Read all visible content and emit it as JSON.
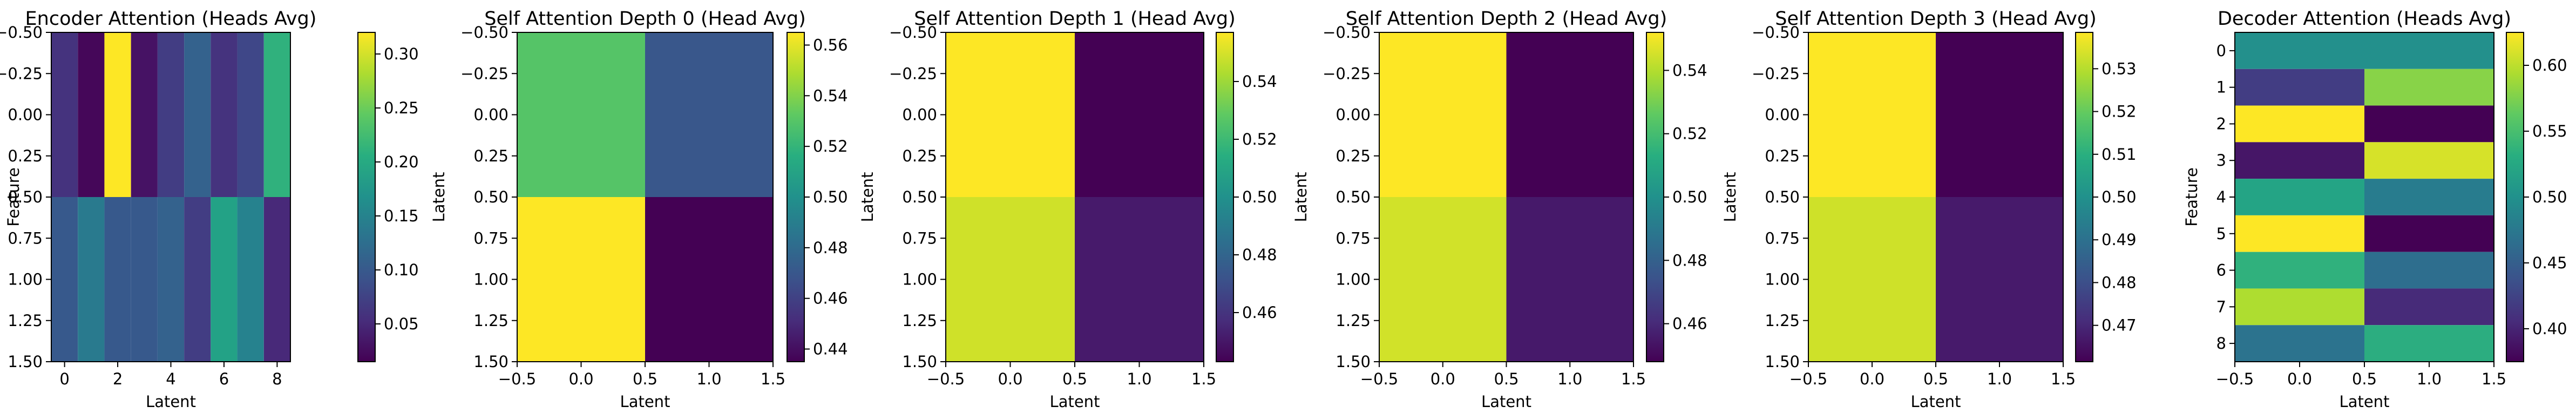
{
  "chart_data": [
    {
      "type": "heatmap",
      "title": "Encoder Attention (Heads Avg)",
      "xlabel": "Latent",
      "ylabel": "Feature",
      "xlim": [
        -0.5,
        8.5
      ],
      "ylim": [
        1.5,
        -0.5
      ],
      "x_ticks": [
        0,
        2,
        4,
        6,
        8
      ],
      "x_tick_labels": [
        "0",
        "2",
        "4",
        "6",
        "8"
      ],
      "y_ticks": [
        -0.5,
        -0.25,
        0.0,
        0.25,
        0.5,
        0.75,
        1.0,
        1.25,
        1.5
      ],
      "y_tick_labels": [
        "−0.50",
        "−0.25",
        "0.00",
        "0.25",
        "0.50",
        "0.75",
        "1.00",
        "1.25",
        "1.50"
      ],
      "colorbar": {
        "range": [
          0.015,
          0.32
        ],
        "ticks": [
          0.05,
          0.1,
          0.15,
          0.2,
          0.25,
          0.3
        ],
        "tick_labels": [
          "0.05",
          "0.10",
          "0.15",
          "0.20",
          "0.25",
          "0.30"
        ]
      },
      "values": [
        [
          0.06,
          0.02,
          0.32,
          0.03,
          0.07,
          0.11,
          0.06,
          0.08,
          0.21
        ],
        [
          0.1,
          0.14,
          0.1,
          0.1,
          0.11,
          0.07,
          0.19,
          0.15,
          0.05
        ]
      ]
    },
    {
      "type": "heatmap",
      "title": "Self Attention Depth 0 (Head Avg)",
      "xlabel": "Latent",
      "ylabel": "Latent",
      "xlim": [
        -0.5,
        1.5
      ],
      "ylim": [
        1.5,
        -0.5
      ],
      "x_ticks": [
        -0.5,
        0.0,
        0.5,
        1.0,
        1.5
      ],
      "x_tick_labels": [
        "−0.5",
        "0.0",
        "0.5",
        "1.0",
        "1.5"
      ],
      "y_ticks": [
        -0.5,
        -0.25,
        0.0,
        0.25,
        0.5,
        0.75,
        1.0,
        1.25,
        1.5
      ],
      "y_tick_labels": [
        "−0.50",
        "−0.25",
        "0.00",
        "0.25",
        "0.50",
        "0.75",
        "1.00",
        "1.25",
        "1.50"
      ],
      "colorbar": {
        "range": [
          0.435,
          0.565
        ],
        "ticks": [
          0.44,
          0.46,
          0.48,
          0.5,
          0.52,
          0.54,
          0.56
        ],
        "tick_labels": [
          "0.44",
          "0.46",
          "0.48",
          "0.50",
          "0.52",
          "0.54",
          "0.56"
        ]
      },
      "values": [
        [
          0.53,
          0.47
        ],
        [
          0.565,
          0.435
        ]
      ]
    },
    {
      "type": "heatmap",
      "title": "Self Attention Depth 1 (Head Avg)",
      "xlabel": "Latent",
      "ylabel": "Latent",
      "xlim": [
        -0.5,
        1.5
      ],
      "ylim": [
        1.5,
        -0.5
      ],
      "x_ticks": [
        -0.5,
        0.0,
        0.5,
        1.0,
        1.5
      ],
      "x_tick_labels": [
        "−0.5",
        "0.0",
        "0.5",
        "1.0",
        "1.5"
      ],
      "y_ticks": [
        -0.5,
        -0.25,
        0.0,
        0.25,
        0.5,
        0.75,
        1.0,
        1.25,
        1.5
      ],
      "y_tick_labels": [
        "−0.50",
        "−0.25",
        "0.00",
        "0.25",
        "0.50",
        "0.75",
        "1.00",
        "1.25",
        "1.50"
      ],
      "colorbar": {
        "range": [
          0.443,
          0.557
        ],
        "ticks": [
          0.46,
          0.48,
          0.5,
          0.52,
          0.54
        ],
        "tick_labels": [
          "0.46",
          "0.48",
          "0.50",
          "0.52",
          "0.54"
        ]
      },
      "values": [
        [
          0.557,
          0.443
        ],
        [
          0.549,
          0.451
        ]
      ]
    },
    {
      "type": "heatmap",
      "title": "Self Attention Depth 2 (Head Avg)",
      "xlabel": "Latent",
      "ylabel": "Latent",
      "xlim": [
        -0.5,
        1.5
      ],
      "ylim": [
        1.5,
        -0.5
      ],
      "x_ticks": [
        -0.5,
        0.0,
        0.5,
        1.0,
        1.5
      ],
      "x_tick_labels": [
        "−0.5",
        "0.0",
        "0.5",
        "1.0",
        "1.5"
      ],
      "y_ticks": [
        -0.5,
        -0.25,
        0.0,
        0.25,
        0.5,
        0.75,
        1.0,
        1.25,
        1.5
      ],
      "y_tick_labels": [
        "−0.50",
        "−0.25",
        "0.00",
        "0.25",
        "0.50",
        "0.75",
        "1.00",
        "1.25",
        "1.50"
      ],
      "colorbar": {
        "range": [
          0.448,
          0.552
        ],
        "ticks": [
          0.46,
          0.48,
          0.5,
          0.52,
          0.54
        ],
        "tick_labels": [
          "0.46",
          "0.48",
          "0.50",
          "0.52",
          "0.54"
        ]
      },
      "values": [
        [
          0.552,
          0.448
        ],
        [
          0.545,
          0.455
        ]
      ]
    },
    {
      "type": "heatmap",
      "title": "Self Attention Depth 3 (Head Avg)",
      "xlabel": "Latent",
      "ylabel": "Latent",
      "xlim": [
        -0.5,
        1.5
      ],
      "ylim": [
        1.5,
        -0.5
      ],
      "x_ticks": [
        -0.5,
        0.0,
        0.5,
        1.0,
        1.5
      ],
      "x_tick_labels": [
        "−0.5",
        "0.0",
        "0.5",
        "1.0",
        "1.5"
      ],
      "y_ticks": [
        -0.5,
        -0.25,
        0.0,
        0.25,
        0.5,
        0.75,
        1.0,
        1.25,
        1.5
      ],
      "y_tick_labels": [
        "−0.50",
        "−0.25",
        "0.00",
        "0.25",
        "0.50",
        "0.75",
        "1.00",
        "1.25",
        "1.50"
      ],
      "colorbar": {
        "range": [
          0.4615,
          0.5385
        ],
        "ticks": [
          0.47,
          0.48,
          0.49,
          0.5,
          0.51,
          0.52,
          0.53
        ],
        "tick_labels": [
          "0.47",
          "0.48",
          "0.49",
          "0.50",
          "0.51",
          "0.52",
          "0.53"
        ]
      },
      "values": [
        [
          0.5385,
          0.4615
        ],
        [
          0.533,
          0.467
        ]
      ]
    },
    {
      "type": "heatmap",
      "title": "Decoder Attention (Heads Avg)",
      "xlabel": "Latent",
      "ylabel": "Feature",
      "xlim": [
        -0.5,
        1.5
      ],
      "ylim": [
        8.5,
        -0.5
      ],
      "x_ticks": [
        -0.5,
        0.0,
        0.5,
        1.0,
        1.5
      ],
      "x_tick_labels": [
        "−0.5",
        "0.0",
        "0.5",
        "1.0",
        "1.5"
      ],
      "y_ticks": [
        0,
        1,
        2,
        3,
        4,
        5,
        6,
        7,
        8
      ],
      "y_tick_labels": [
        "0",
        "1",
        "2",
        "3",
        "4",
        "5",
        "6",
        "7",
        "8"
      ],
      "colorbar": {
        "range": [
          0.375,
          0.625
        ],
        "ticks": [
          0.4,
          0.45,
          0.5,
          0.55,
          0.6
        ],
        "tick_labels": [
          "0.40",
          "0.45",
          "0.50",
          "0.55",
          "0.60"
        ]
      },
      "values": [
        [
          0.5,
          0.5
        ],
        [
          0.42,
          0.58
        ],
        [
          0.625,
          0.375
        ],
        [
          0.39,
          0.61
        ],
        [
          0.52,
          0.48
        ],
        [
          0.625,
          0.375
        ],
        [
          0.535,
          0.465
        ],
        [
          0.595,
          0.405
        ],
        [
          0.47,
          0.53
        ]
      ]
    }
  ]
}
